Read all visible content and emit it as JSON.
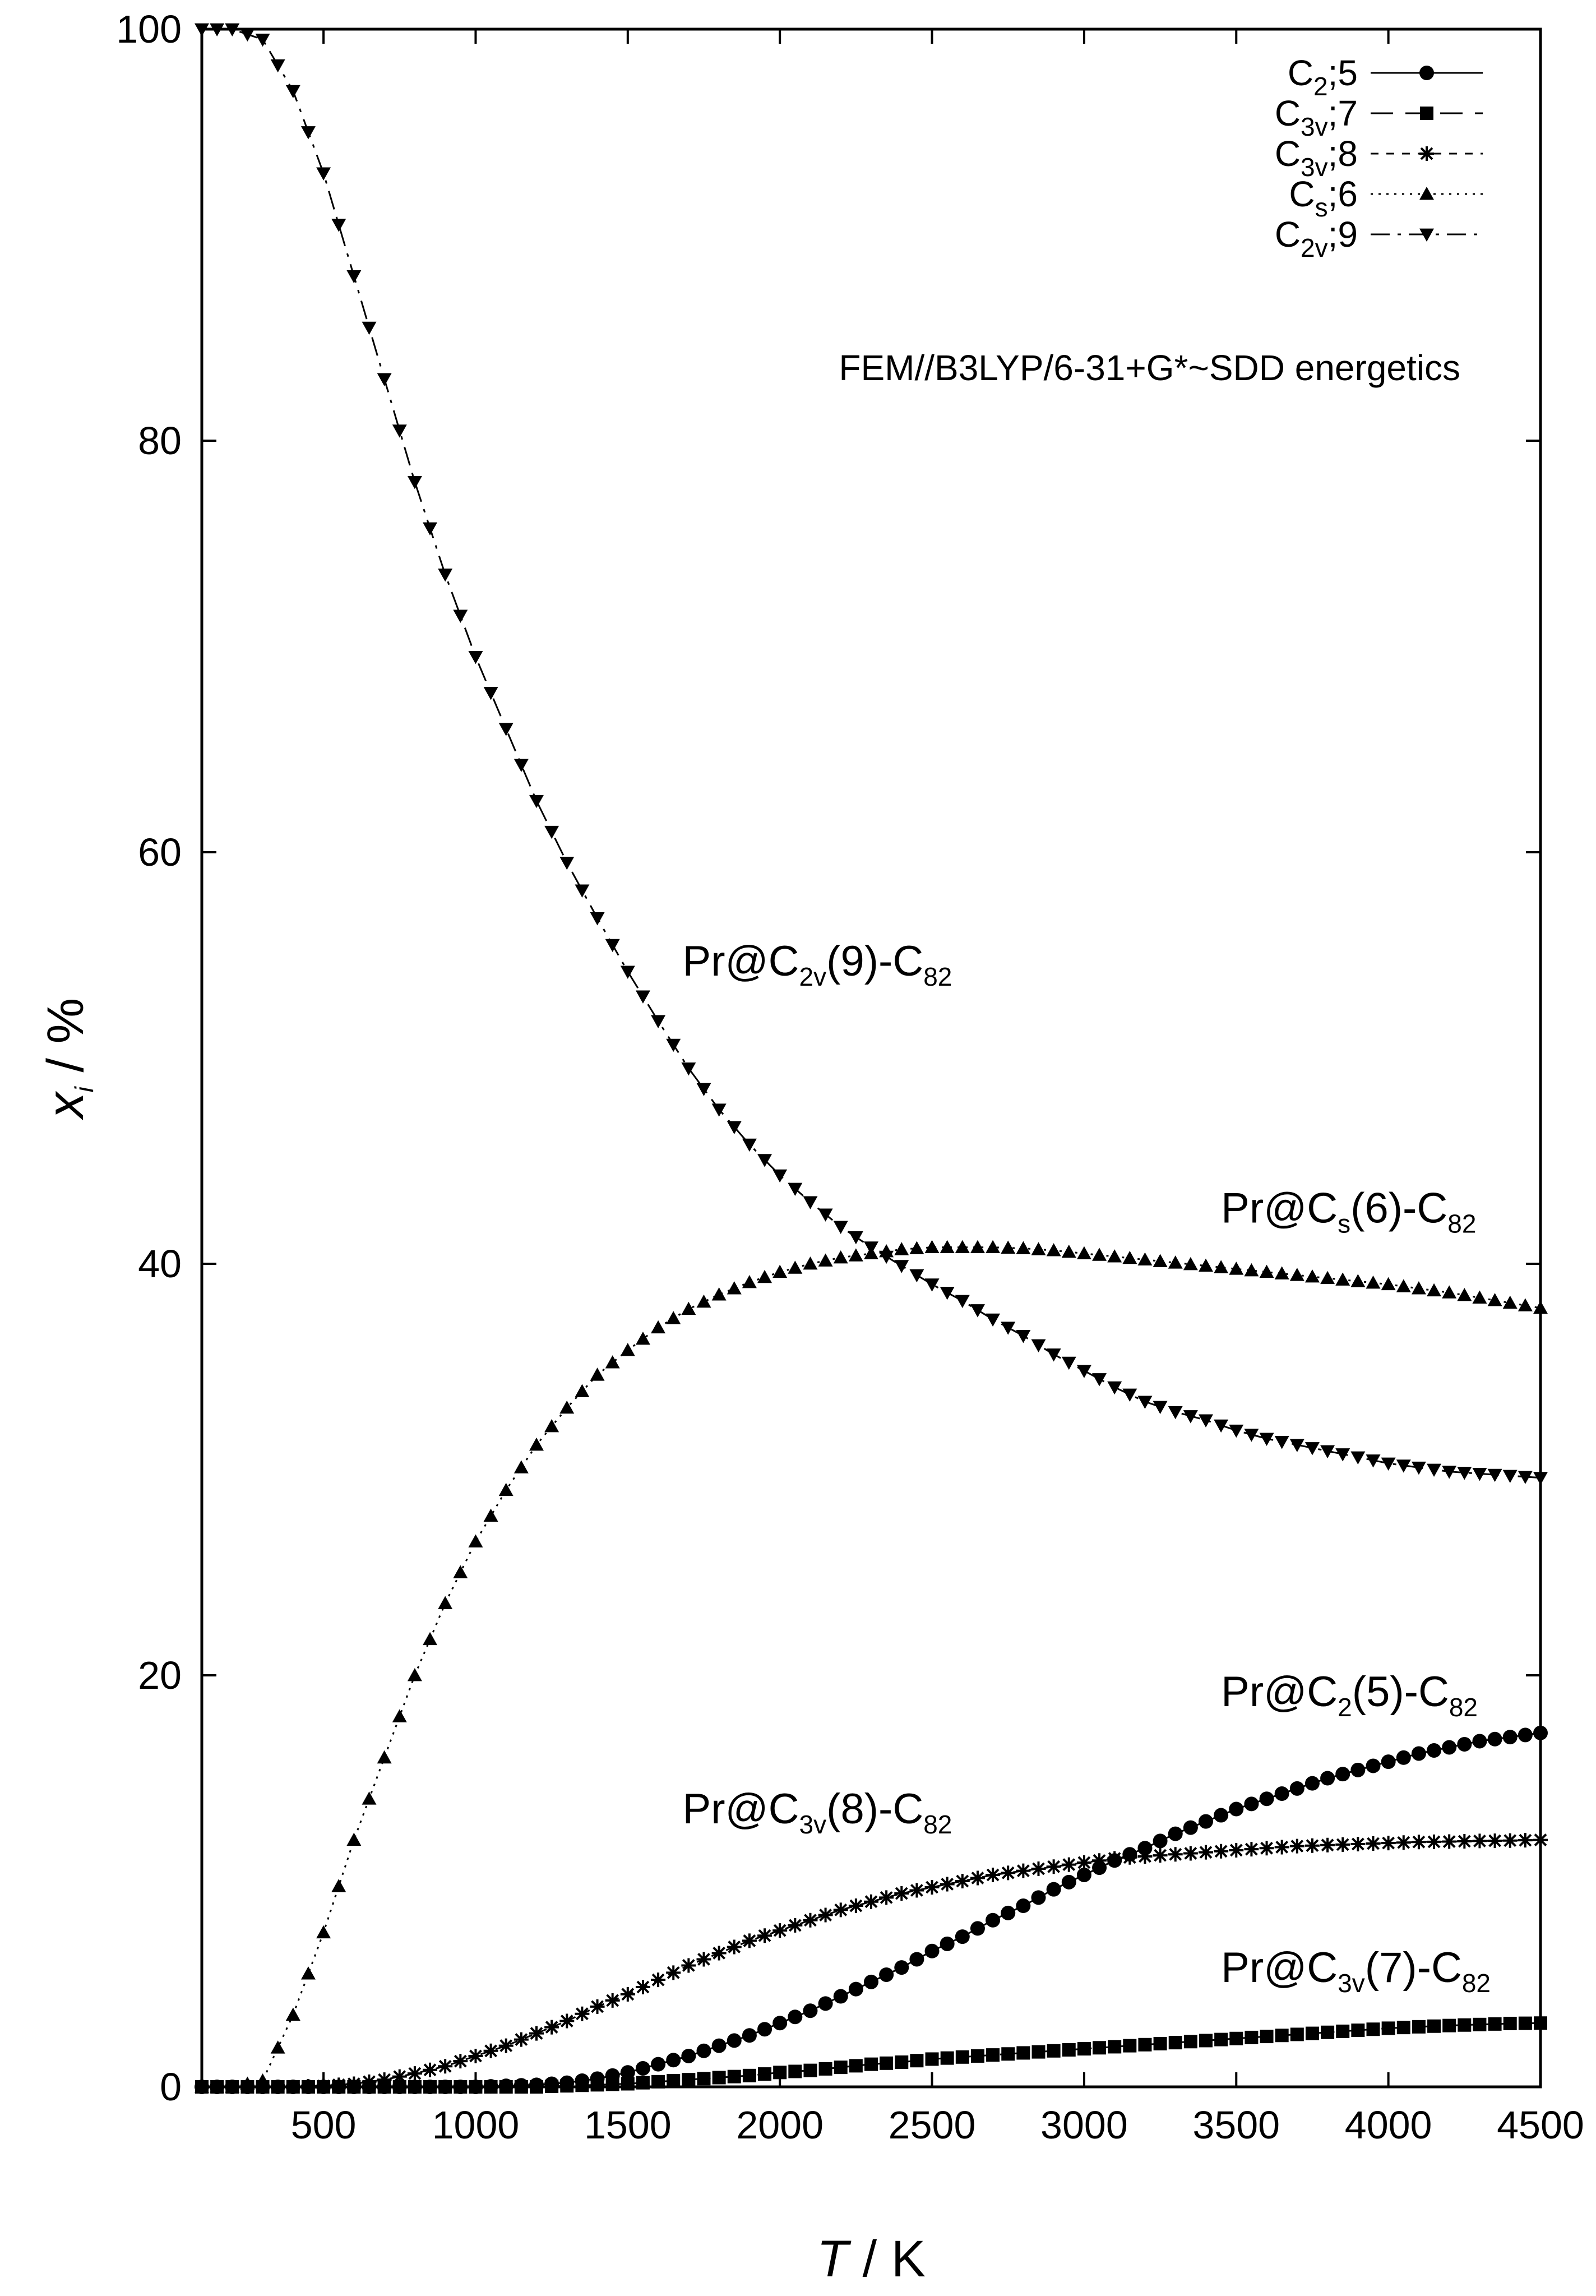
{
  "chart_data": {
    "type": "line",
    "title": "",
    "subtitle": "FEM//B3LYP/6-31+G*~SDD energetics",
    "xlabel": {
      "var": "T",
      "unit": " / K"
    },
    "ylabel": {
      "var": "x",
      "sub": "i",
      "unit": " / %"
    },
    "xlim": [
      100,
      4500
    ],
    "ylim": [
      0,
      100
    ],
    "xticks": [
      500,
      1000,
      1500,
      2000,
      2500,
      3000,
      3500,
      4000,
      4500
    ],
    "yticks": [
      0,
      20,
      40,
      60,
      80,
      100
    ],
    "legend_position": "top-right",
    "grid": false,
    "x": [
      100,
      200,
      300,
      400,
      500,
      600,
      700,
      800,
      900,
      1000,
      1100,
      1200,
      1300,
      1400,
      1500,
      1600,
      1700,
      1800,
      1900,
      2000,
      2100,
      2200,
      2300,
      2400,
      2500,
      2600,
      2700,
      2800,
      2900,
      3000,
      3100,
      3200,
      3300,
      3400,
      3500,
      3600,
      3700,
      3800,
      3900,
      4000,
      4100,
      4200,
      4300,
      4400,
      4500
    ],
    "series": [
      {
        "name": "C2;5",
        "legend": {
          "base": "C",
          "sub": "2",
          "rest": ";5"
        },
        "marker": "circle",
        "dash": "",
        "values": [
          0,
          0,
          0,
          0,
          0,
          0,
          0,
          0,
          0,
          0,
          0.05,
          0.1,
          0.2,
          0.4,
          0.7,
          1.1,
          1.5,
          2.0,
          2.5,
          3.1,
          3.7,
          4.4,
          5.1,
          5.8,
          6.6,
          7.3,
          8.1,
          8.8,
          9.6,
          10.3,
          11.0,
          11.6,
          12.3,
          12.9,
          13.5,
          14.0,
          14.5,
          15.0,
          15.4,
          15.8,
          16.2,
          16.5,
          16.8,
          17.0,
          17.2
        ]
      },
      {
        "name": "C3v;7",
        "legend": {
          "base": "C",
          "sub": "3v",
          "rest": ";7"
        },
        "marker": "square",
        "dash": "40,22",
        "values": [
          0,
          0,
          0,
          0,
          0,
          0,
          0,
          0,
          0,
          0,
          0,
          0,
          0.05,
          0.1,
          0.15,
          0.25,
          0.35,
          0.45,
          0.55,
          0.7,
          0.8,
          0.95,
          1.1,
          1.2,
          1.35,
          1.45,
          1.55,
          1.65,
          1.75,
          1.85,
          1.95,
          2.05,
          2.15,
          2.25,
          2.35,
          2.45,
          2.55,
          2.65,
          2.75,
          2.85,
          2.92,
          2.98,
          3.03,
          3.08,
          3.1
        ]
      },
      {
        "name": "C3v;8",
        "legend": {
          "base": "C",
          "sub": "3v",
          "rest": ";8"
        },
        "marker": "star",
        "dash": "14,14",
        "values": [
          0,
          0,
          0,
          0,
          0.05,
          0.15,
          0.35,
          0.65,
          1.0,
          1.5,
          2.0,
          2.6,
          3.2,
          3.9,
          4.5,
          5.2,
          5.9,
          6.5,
          7.1,
          7.6,
          8.1,
          8.6,
          9.0,
          9.4,
          9.7,
          10.0,
          10.3,
          10.5,
          10.7,
          10.9,
          11.1,
          11.2,
          11.3,
          11.4,
          11.5,
          11.6,
          11.7,
          11.75,
          11.8,
          11.85,
          11.9,
          11.92,
          11.95,
          11.97,
          12.0
        ]
      },
      {
        "name": "Cs;6",
        "legend": {
          "base": "C",
          "sub": "s",
          "rest": ";6"
        },
        "marker": "triangle-up",
        "dash": "4,10",
        "values": [
          0,
          0,
          0.3,
          3.5,
          7.5,
          12.0,
          16.0,
          20.0,
          23.5,
          26.5,
          29.0,
          31.2,
          33.0,
          34.6,
          35.8,
          36.9,
          37.8,
          38.5,
          39.1,
          39.6,
          40.0,
          40.3,
          40.5,
          40.7,
          40.8,
          40.8,
          40.8,
          40.75,
          40.65,
          40.5,
          40.35,
          40.2,
          40.05,
          39.9,
          39.75,
          39.6,
          39.45,
          39.3,
          39.15,
          39.0,
          38.8,
          38.6,
          38.35,
          38.1,
          37.85
        ]
      },
      {
        "name": "C2v;9",
        "legend": {
          "base": "C",
          "sub": "2v",
          "rest": ";9"
        },
        "marker": "triangle-down",
        "dash": "34,14,6,14",
        "values": [
          100,
          100,
          99.5,
          97.0,
          93.0,
          88.0,
          83.0,
          78.0,
          73.5,
          69.5,
          66.0,
          62.5,
          59.5,
          56.8,
          54.2,
          51.8,
          49.5,
          47.5,
          45.8,
          44.3,
          43.0,
          41.8,
          40.8,
          39.9,
          39.0,
          38.2,
          37.3,
          36.5,
          35.6,
          34.8,
          34.0,
          33.3,
          32.8,
          32.4,
          31.9,
          31.5,
          31.2,
          30.9,
          30.6,
          30.3,
          30.1,
          29.9,
          29.8,
          29.7,
          29.6
        ]
      }
    ],
    "annotations": [
      {
        "base": "Pr@C",
        "sub": "2v",
        "rest": "(9)-C",
        "sub2": "82",
        "x": 1680,
        "y": 54
      },
      {
        "base": "Pr@C",
        "sub": "s",
        "rest": "(6)-C",
        "sub2": "82",
        "x": 3450,
        "y": 42
      },
      {
        "base": "Pr@C",
        "sub": "2",
        "rest": "(5)-C",
        "sub2": "82",
        "x": 3450,
        "y": 18.5
      },
      {
        "base": "Pr@C",
        "sub": "3v",
        "rest": "(8)-C",
        "sub2": "82",
        "x": 1680,
        "y": 12.8
      },
      {
        "base": "Pr@C",
        "sub": "3v",
        "rest": "(7)-C",
        "sub2": "82",
        "x": 3450,
        "y": 5.1
      }
    ]
  }
}
